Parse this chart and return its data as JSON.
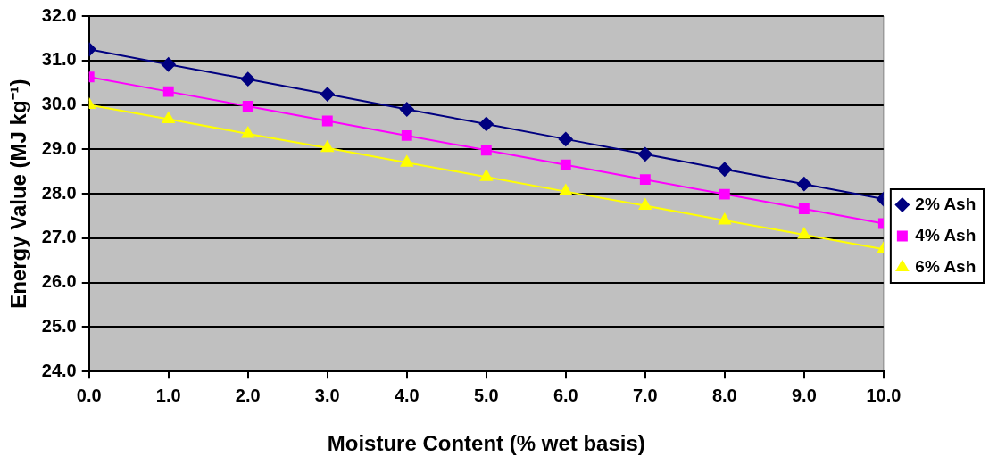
{
  "chart_data": {
    "type": "line",
    "xlabel": "Moisture Content (% wet basis)",
    "ylabel": "Energy Value (MJ kg⁻¹)",
    "x": [
      0,
      1,
      2,
      3,
      4,
      5,
      6,
      7,
      8,
      9,
      10
    ],
    "xlim": [
      0,
      10
    ],
    "xticks": [
      {
        "value": 0,
        "label": "0.0"
      },
      {
        "value": 1,
        "label": "1.0"
      },
      {
        "value": 2,
        "label": "2.0"
      },
      {
        "value": 3,
        "label": "3.0"
      },
      {
        "value": 4,
        "label": "4.0"
      },
      {
        "value": 5,
        "label": "5.0"
      },
      {
        "value": 6,
        "label": "6.0"
      },
      {
        "value": 7,
        "label": "7.0"
      },
      {
        "value": 8,
        "label": "8.0"
      },
      {
        "value": 9,
        "label": "9.0"
      },
      {
        "value": 10,
        "label": "10.0"
      }
    ],
    "ylim": [
      24,
      32
    ],
    "yticks": [
      {
        "value": 24,
        "label": "24.0"
      },
      {
        "value": 25,
        "label": "25.0"
      },
      {
        "value": 26,
        "label": "26.0"
      },
      {
        "value": 27,
        "label": "27.0"
      },
      {
        "value": 28,
        "label": "28.0"
      },
      {
        "value": 29,
        "label": "29.0"
      },
      {
        "value": 30,
        "label": "30.0"
      },
      {
        "value": 31,
        "label": "31.0"
      },
      {
        "value": 32,
        "label": "32.0"
      }
    ],
    "grid": "y",
    "legend": "right",
    "line_style": "solid",
    "series": [
      {
        "name": "2% Ash",
        "color": "#000080",
        "marker": "diamond",
        "values": [
          31.25,
          30.91,
          30.58,
          30.24,
          29.9,
          29.57,
          29.23,
          28.89,
          28.55,
          28.22,
          27.88
        ]
      },
      {
        "name": "4% Ash",
        "color": "#ff00ff",
        "marker": "square",
        "values": [
          30.63,
          30.3,
          29.97,
          29.64,
          29.31,
          28.98,
          28.65,
          28.32,
          27.99,
          27.66,
          27.33
        ]
      },
      {
        "name": "6% Ash",
        "color": "#ffff00",
        "marker": "triangle",
        "values": [
          30.0,
          29.68,
          29.35,
          29.03,
          28.7,
          28.38,
          28.05,
          27.73,
          27.4,
          27.08,
          26.75
        ]
      }
    ]
  }
}
